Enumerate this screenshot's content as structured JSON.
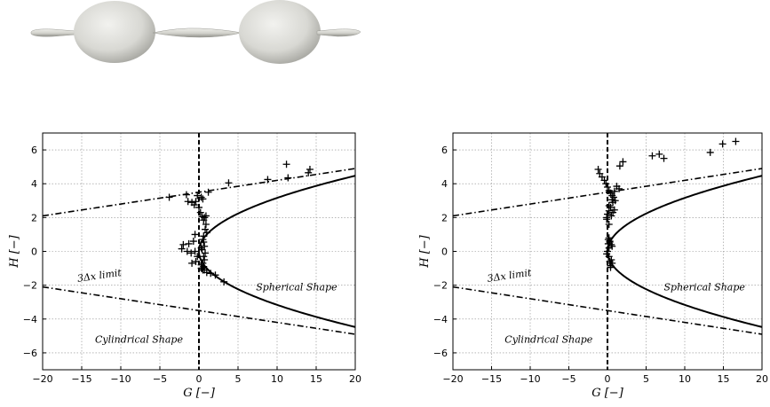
{
  "chart_data": [
    {
      "type": "scatter",
      "title": "",
      "xlabel": "G [−]",
      "ylabel": "H [−]",
      "xlim": [
        -20,
        20
      ],
      "ylim": [
        -7,
        7
      ],
      "xticks": [
        -20,
        -15,
        -10,
        -5,
        0,
        5,
        10,
        15,
        20
      ],
      "yticks": [
        -6,
        -4,
        -2,
        0,
        2,
        4,
        6
      ],
      "grid": true,
      "annotations": [
        "3Δx limit",
        "Spherical Shape",
        "Cylindrical Shape"
      ],
      "reference_lines": {
        "vertical_dashed": 0,
        "limit_dashdot": "H = ±(3.5 + 0.07·G)",
        "parabola_solid": "G = H²"
      },
      "series": [
        {
          "marker": "+",
          "x": [
            -3.8,
            -1.6,
            -1.4,
            -0.9,
            -0.6,
            -0.4,
            -0.2,
            0.0,
            0.2,
            0.4,
            0.6,
            0.7,
            0.9,
            1.0,
            0.6,
            0.5,
            0.6,
            0.7,
            0.4,
            0.8,
            0.6,
            0.7,
            0.5,
            0.3,
            0.6,
            0.4,
            0.5,
            0.3,
            -0.5,
            -1.0,
            -2.0,
            -0.7,
            -0.4,
            0.3,
            0.7,
            1.0,
            1.5,
            2.1,
            3.2,
            3.8,
            8.8,
            11.2,
            11.4,
            14.0,
            14.2,
            -2.2,
            -1.3,
            0.5,
            1.2,
            0.3,
            -0.5,
            0.8,
            -0.2,
            -0.9,
            0.9,
            -1.5
          ],
          "y": [
            3.2,
            3.35,
            2.95,
            2.9,
            2.75,
            2.95,
            3.3,
            2.6,
            2.3,
            2.05,
            1.85,
            2.0,
            2.1,
            1.1,
            0.9,
            0.7,
            0.55,
            0.3,
            0.1,
            -0.1,
            -0.3,
            -0.5,
            -0.7,
            -0.8,
            -0.9,
            -1.0,
            -1.1,
            0.2,
            0.0,
            -0.1,
            0.4,
            0.6,
            -0.6,
            -1.0,
            -1.1,
            -1.25,
            -1.3,
            -1.4,
            -1.8,
            4.05,
            4.25,
            5.15,
            4.35,
            4.65,
            4.85,
            0.15,
            0.45,
            3.1,
            3.5,
            3.2,
            1.0,
            1.3,
            -0.3,
            -0.7,
            1.6,
            0.0
          ]
        }
      ]
    },
    {
      "type": "scatter",
      "title": "",
      "xlabel": "G [−]",
      "ylabel": "H [−]",
      "xlim": [
        -20,
        20
      ],
      "ylim": [
        -7,
        7
      ],
      "xticks": [
        -20,
        -15,
        -10,
        -5,
        0,
        5,
        10,
        15,
        20
      ],
      "yticks": [
        -6,
        -4,
        -2,
        0,
        2,
        4,
        6
      ],
      "grid": true,
      "annotations": [
        "3Δx limit",
        "Spherical Shape",
        "Cylindrical Shape"
      ],
      "reference_lines": {
        "vertical_dashed": 0,
        "limit_dashdot": "H = ±(3.5 + 0.07·G)",
        "parabola_solid": "G = H²"
      },
      "series": [
        {
          "marker": "+",
          "x": [
            -1.2,
            -1.0,
            -0.7,
            -0.4,
            -0.2,
            0.0,
            0.2,
            0.4,
            0.6,
            0.8,
            1.0,
            0.7,
            0.4,
            0.2,
            0.0,
            -0.1,
            0.1,
            0.3,
            0.5,
            0.2,
            0.0,
            -0.1,
            0.2,
            0.5,
            0.6,
            0.4,
            0.2,
            0.3,
            0.6,
            0.9,
            1.2,
            1.5,
            2.0,
            1.6,
            5.8,
            6.7,
            7.3,
            13.3,
            14.9,
            16.6,
            0.2,
            0.5,
            0.9,
            0.3,
            0.1,
            0.4,
            0.6,
            -0.1,
            0.7,
            0.2
          ],
          "y": [
            4.85,
            4.6,
            4.4,
            4.2,
            4.0,
            3.8,
            3.6,
            3.45,
            3.3,
            3.2,
            3.0,
            2.9,
            2.6,
            2.4,
            2.2,
            1.9,
            0.7,
            0.55,
            0.4,
            0.2,
            0.0,
            -0.15,
            -0.3,
            -0.5,
            -0.7,
            -0.85,
            0.8,
            0.6,
            0.3,
            3.55,
            3.85,
            3.7,
            5.3,
            5.05,
            5.65,
            5.75,
            5.5,
            5.85,
            6.35,
            6.5,
            2.7,
            2.1,
            2.45,
            -0.6,
            0.45,
            -0.95,
            3.05,
            2.0,
            2.3,
            1.6
          ]
        }
      ]
    }
  ]
}
